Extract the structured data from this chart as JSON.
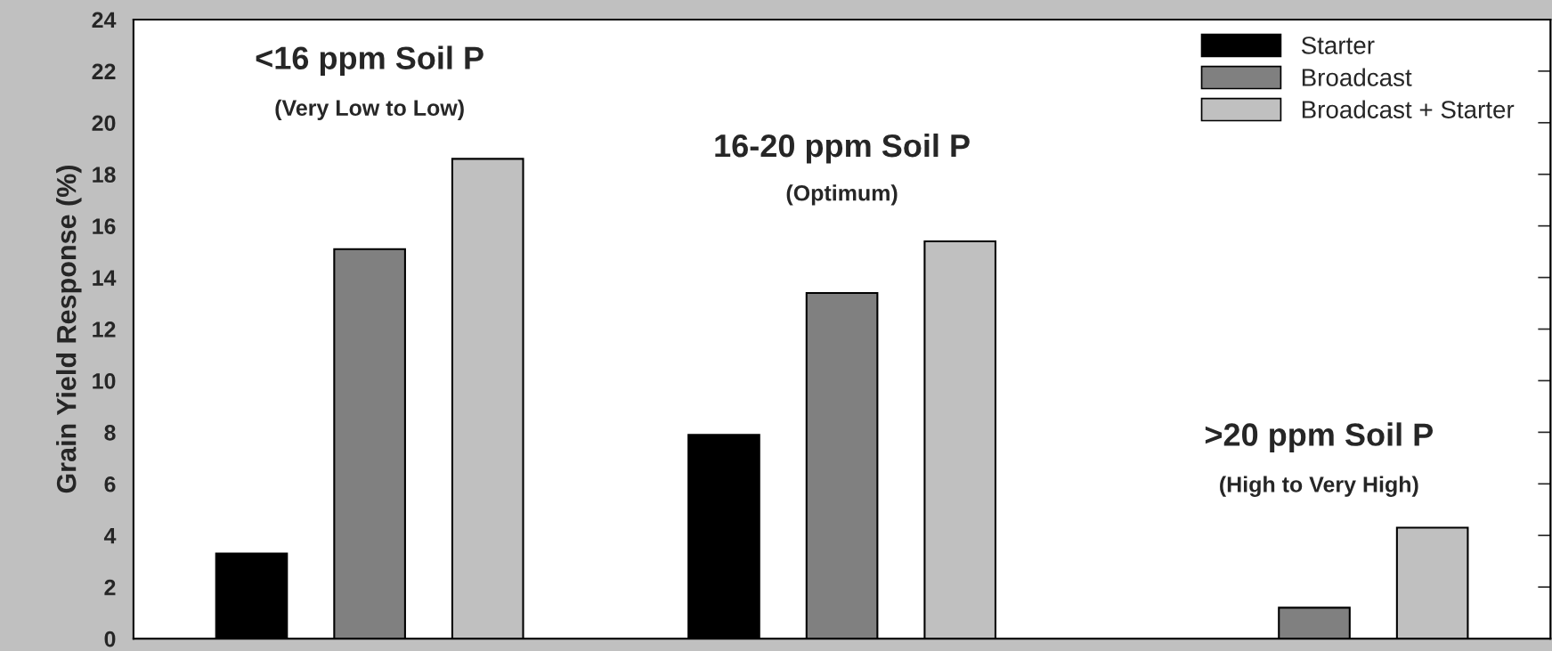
{
  "chart_data": {
    "type": "bar",
    "ylabel": "Grain Yield Response (%)",
    "categories": [
      null,
      null,
      null
    ],
    "series": [
      {
        "name": "Starter",
        "color": "#000000",
        "values": [
          3.3,
          7.9,
          0
        ]
      },
      {
        "name": "Broadcast",
        "color": "#808080",
        "values": [
          15.1,
          13.4,
          1.2
        ]
      },
      {
        "name": "Broadcast + Starter",
        "color": "#c0c0c0",
        "values": [
          18.6,
          15.4,
          4.3
        ]
      }
    ],
    "ylim": [
      0,
      24
    ],
    "yticks": [
      0,
      2,
      4,
      6,
      8,
      10,
      12,
      14,
      16,
      18,
      20,
      22,
      24
    ],
    "legend": "top right",
    "grid": false,
    "annotations": [
      "<16 ppm Soil P",
      "(Very Low to Low)",
      "16-20 ppm Soil P",
      "(Optimum)",
      ">20 ppm Soil P",
      "(High to Very High)"
    ]
  }
}
